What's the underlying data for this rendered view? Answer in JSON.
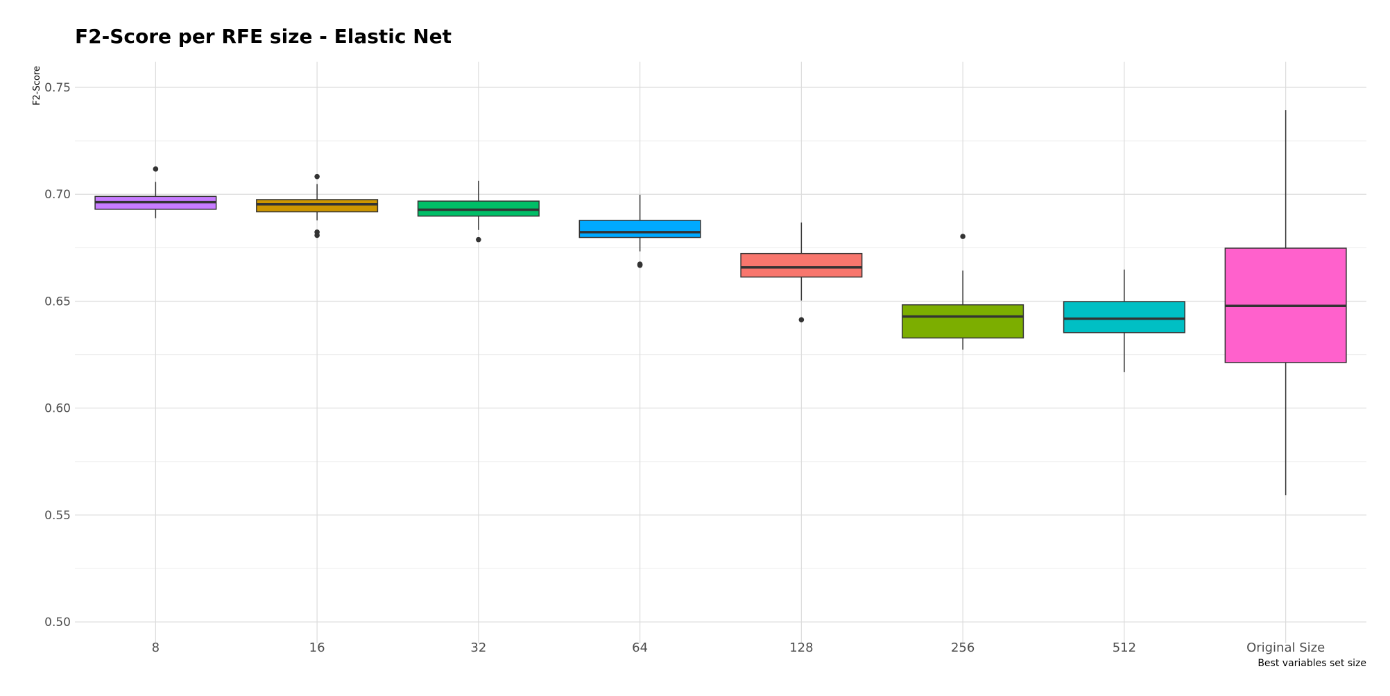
{
  "chart_data": {
    "type": "box",
    "title": "F2-Score per RFE size - Elastic Net",
    "xlabel": "Best variables set size",
    "ylabel": "F2-Score",
    "ylim": [
      0.49,
      0.762
    ],
    "yticks": [
      0.5,
      0.55,
      0.6,
      0.65,
      0.7,
      0.75
    ],
    "ytick_labels": [
      "0.50",
      "0.55",
      "0.60",
      "0.65",
      "0.70",
      "0.75"
    ],
    "grid": true,
    "legend": "none",
    "categories": [
      "8",
      "16",
      "32",
      "64",
      "128",
      "256",
      "512",
      "Original Size"
    ],
    "boxes": [
      {
        "category": "8",
        "color": "#C77CFF",
        "whisker_low": 0.6888,
        "q1": 0.693,
        "median": 0.6963,
        "q3": 0.699,
        "whisker_high": 0.7058,
        "outliers": [
          0.7118
        ]
      },
      {
        "category": "16",
        "color": "#CD9600",
        "whisker_low": 0.6878,
        "q1": 0.6918,
        "median": 0.6953,
        "q3": 0.6975,
        "whisker_high": 0.7048,
        "outliers": [
          0.7083,
          0.6823,
          0.6808
        ]
      },
      {
        "category": "32",
        "color": "#00BE67",
        "whisker_low": 0.6833,
        "q1": 0.6898,
        "median": 0.6928,
        "q3": 0.6968,
        "whisker_high": 0.7063,
        "outliers": [
          0.6788
        ]
      },
      {
        "category": "64",
        "color": "#00A9FF",
        "whisker_low": 0.6733,
        "q1": 0.6798,
        "median": 0.6823,
        "q3": 0.6878,
        "whisker_high": 0.6998,
        "outliers": [
          0.6673,
          0.6668
        ]
      },
      {
        "category": "128",
        "color": "#F8766D",
        "whisker_low": 0.6503,
        "q1": 0.6613,
        "median": 0.6658,
        "q3": 0.6723,
        "whisker_high": 0.6868,
        "outliers": [
          0.6413
        ]
      },
      {
        "category": "256",
        "color": "#7CAE00",
        "whisker_low": 0.6273,
        "q1": 0.6328,
        "median": 0.6428,
        "q3": 0.6483,
        "whisker_high": 0.6643,
        "outliers": [
          0.6803
        ]
      },
      {
        "category": "512",
        "color": "#00BFC4",
        "whisker_low": 0.6168,
        "q1": 0.6353,
        "median": 0.6418,
        "q3": 0.6498,
        "whisker_high": 0.6648,
        "outliers": []
      },
      {
        "category": "Original Size",
        "color": "#FF61CC",
        "whisker_low": 0.5593,
        "q1": 0.6213,
        "median": 0.6478,
        "q3": 0.6748,
        "whisker_high": 0.7393,
        "outliers": []
      }
    ]
  }
}
